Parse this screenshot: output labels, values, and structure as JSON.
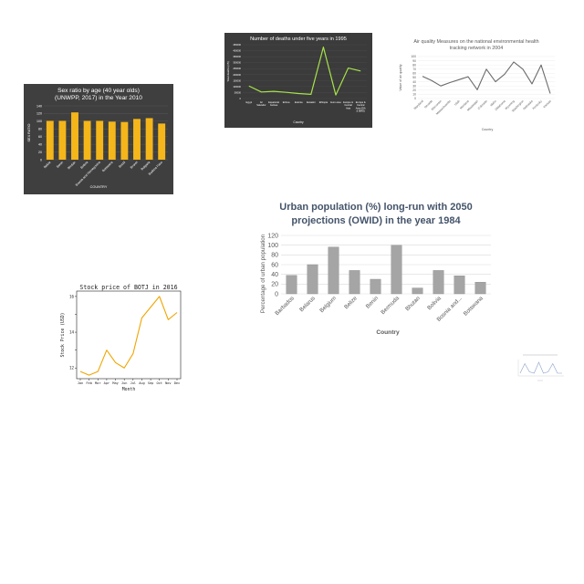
{
  "chart_data": [
    {
      "id": "sexratio",
      "type": "bar",
      "title": "Sex ratio by age (40 year olds) (UNWPP, 2017) in the Year 2010",
      "title_lines": [
        "Sex ratio by age (40 year olds)",
        "(UNWPP, 2017) in the Year 2010"
      ],
      "xlabel": "COUNTRY",
      "ylabel": "SEX RATIO",
      "categories": [
        "Belize",
        "Benin",
        "Bhutan",
        "Bolivia",
        "Bosnia and Herzegovina",
        "Botswana",
        "Brazil",
        "Brunei",
        "Bulgaria",
        "Burkina Faso"
      ],
      "values": [
        101,
        101,
        123,
        101,
        101,
        99,
        98,
        106,
        108,
        94
      ],
      "ylim": [
        0,
        140
      ],
      "yticks": [
        0,
        20,
        40,
        60,
        80,
        100,
        120,
        140
      ],
      "colors": {
        "bg": "#3f3f3f",
        "bar": "#f4b61a",
        "text": "#ffffff",
        "grid": "#5a5a5a"
      }
    },
    {
      "id": "deaths",
      "type": "line",
      "title": "Number of deaths under five years in 1995",
      "xlabel": "Country",
      "ylabel": "Total deaths (<5)",
      "categories": [
        "Egypt",
        "El Salvador",
        "Equatorial Guinea",
        "Eritrea",
        "Estonia",
        "Eswatini",
        "Ethiopia",
        "Euro area",
        "Europe & Central Asia",
        "Europe & Central Asia (IDA & IBRD)"
      ],
      "category_lines": [
        [
          "Egypt"
        ],
        [
          "El",
          "Salvador"
        ],
        [
          "Equatorial",
          "Guinea"
        ],
        [
          "Eritrea"
        ],
        [
          "Estonia"
        ],
        [
          "Eswatini"
        ],
        [
          "Ethiopia"
        ],
        [
          "Euro area"
        ],
        [
          "Europe &",
          "Central",
          "Asia"
        ],
        [
          "Europe &",
          "Central",
          "Asia (IDA",
          "& IBRD)"
        ]
      ],
      "values": [
        105000,
        55000,
        60000,
        52000,
        42000,
        35000,
        430000,
        30000,
        255000,
        230000
      ],
      "ylim": [
        0,
        450000
      ],
      "yticks": [
        0,
        50000,
        100000,
        150000,
        200000,
        250000,
        300000,
        350000,
        400000,
        450000
      ],
      "colors": {
        "bg": "#3b3b3b",
        "line": "#a6e34a",
        "text": "#ffffff",
        "grid": "#555555"
      }
    },
    {
      "id": "airquality",
      "type": "line",
      "title": "Air quality Measures on the national environmental health tracking network in 2004",
      "title_lines": [
        "Air quality Measures on the national environmental health",
        "tracking network in 2004"
      ],
      "xlabel": "Country",
      "ylabel": "Value of air quality",
      "categories": [
        "Maryland",
        "Nevada",
        "Wisconsin",
        "Massachusetts",
        "Utah",
        "Montana",
        "Mississippi",
        "Colorado",
        "Idaho",
        "Oklahoma",
        "Wyoming",
        "Washington",
        "Nebraska",
        "Kentucky",
        "Kansas"
      ],
      "values": [
        53,
        43,
        30,
        38,
        45,
        52,
        21,
        70,
        40,
        58,
        87,
        70,
        35,
        80,
        12
      ],
      "ylim": [
        0,
        100
      ],
      "yticks": [
        0,
        10,
        20,
        30,
        40,
        50,
        60,
        70,
        80,
        90,
        100
      ],
      "colors": {
        "bg": "#ffffff",
        "line": "#6b6b6b",
        "text": "#595959",
        "grid": "#e3e3e3"
      }
    },
    {
      "id": "urban",
      "type": "bar",
      "title": "Urban population (%) long-run with 2050 projections (OWID) in the year 1984",
      "title_lines": [
        "Urban population (%) long-run with 2050",
        "projections (OWID) in the year 1984"
      ],
      "xlabel": "Country",
      "ylabel": "Percentage of urban population",
      "categories": [
        "Barbados",
        "Belarus",
        "Belgium",
        "Belize",
        "Benin",
        "Bermuda",
        "Bhutan",
        "Bolivia",
        "Bosnia and Herzegovina",
        "Botswana"
      ],
      "category_labels": [
        "Barbados",
        "Belarus",
        "Belgium",
        "Belize",
        "Benin",
        "Bermuda",
        "Bhutan",
        "Bolivia",
        "Bosnia and...",
        "Botswana"
      ],
      "values": [
        38,
        60,
        96,
        48,
        30,
        100,
        12,
        48,
        37,
        24
      ],
      "ylim": [
        0,
        120
      ],
      "yticks": [
        0,
        20,
        40,
        60,
        80,
        100,
        120
      ],
      "colors": {
        "bg": "#ffffff",
        "bar": "#a5a5a5",
        "barEdge": "#8c8c8c",
        "text": "#44546a",
        "grid": "#d9d9d9"
      }
    },
    {
      "id": "stock",
      "type": "line",
      "title": "Stock price of BOTJ in 2016",
      "xlabel": "Month",
      "ylabel": "Stock Price (USD)",
      "categories": [
        "Jan",
        "Feb",
        "Mar",
        "Apr",
        "May",
        "Jun",
        "Jul",
        "Aug",
        "Sep",
        "Oct",
        "Nov",
        "Dec"
      ],
      "values": [
        11.8,
        11.6,
        11.8,
        13.0,
        12.3,
        12.0,
        12.8,
        14.8,
        15.4,
        16.0,
        14.7,
        15.1
      ],
      "ylim": [
        11.4,
        16.3
      ],
      "yticks": [
        12,
        13,
        14,
        15,
        16
      ],
      "ytick_labels": [
        "12",
        "",
        "14",
        "",
        "16"
      ],
      "colors": {
        "bg": "#ffffff",
        "line": "#f0a500",
        "text": "#222222"
      }
    },
    {
      "id": "tiny",
      "type": "line",
      "title": "",
      "xlabel": "",
      "ylabel": "",
      "categories": [
        "1",
        "2",
        "3",
        "4",
        "5",
        "6",
        "7",
        "8",
        "9",
        "10"
      ],
      "values": [
        2,
        9,
        3,
        2,
        10,
        2,
        3,
        9,
        2,
        2
      ],
      "ylim": [
        0,
        12
      ],
      "colors": {
        "bg": "#ffffff",
        "line": "#8aa0c8",
        "text": "#888888"
      }
    }
  ]
}
